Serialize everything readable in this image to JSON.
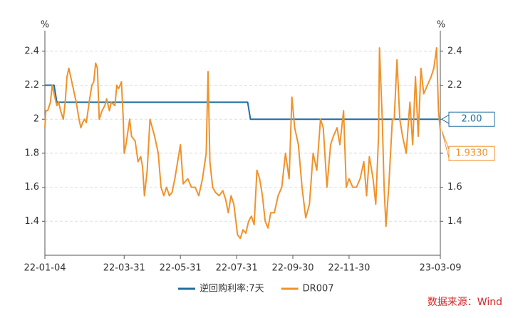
{
  "chart_data": {
    "type": "line",
    "y_unit": "%",
    "y2_unit": "%",
    "xlim": [
      "22-01-04",
      "23-03-09"
    ],
    "xticks": [
      "22-01-04",
      "22-03-31",
      "22-05-31",
      "22-07-31",
      "22-09-30",
      "22-11-30",
      "23-03-09"
    ],
    "ylim": [
      1.2,
      2.5
    ],
    "yticks": [
      1.4,
      1.6,
      1.8,
      2,
      2.2,
      2.4
    ],
    "y2lim": [
      1.2,
      2.5
    ],
    "y2ticks": [
      1.4,
      1.6,
      1.8,
      2,
      2.2,
      2.4
    ],
    "grid": true,
    "legend": "bottom",
    "source": "数据来源：Wind",
    "series": [
      {
        "name": "逆回购利率:7天",
        "color": "#1f6fa0",
        "last_label": "2.00",
        "x": [
          "22-01-04",
          "22-01-14",
          "22-01-17",
          "22-08-12",
          "22-08-15",
          "23-03-09"
        ],
        "values": [
          2.2,
          2.2,
          2.1,
          2.1,
          2.0,
          2.0
        ]
      },
      {
        "name": "DR007",
        "color": "#f0922b",
        "last_label": "1.9330",
        "x": [
          "22-01-04",
          "22-01-05",
          "22-01-07",
          "22-01-10",
          "22-01-12",
          "22-01-14",
          "22-01-17",
          "22-01-19",
          "22-01-21",
          "22-01-24",
          "22-01-26",
          "22-01-28",
          "22-01-30",
          "22-02-07",
          "22-02-10",
          "22-02-12",
          "22-02-14",
          "22-02-16",
          "22-02-18",
          "22-02-21",
          "22-02-24",
          "22-02-26",
          "22-02-28",
          "22-03-02",
          "22-03-04",
          "22-03-07",
          "22-03-10",
          "22-03-12",
          "22-03-15",
          "22-03-17",
          "22-03-21",
          "22-03-23",
          "22-03-25",
          "22-03-28",
          "22-03-30",
          "22-03-31",
          "22-04-02",
          "22-04-06",
          "22-04-08",
          "22-04-12",
          "22-04-15",
          "22-04-18",
          "22-04-20",
          "22-04-22",
          "22-04-25",
          "22-04-28",
          "22-05-03",
          "22-05-07",
          "22-05-10",
          "22-05-13",
          "22-05-16",
          "22-05-19",
          "22-05-22",
          "22-05-25",
          "22-05-28",
          "22-05-31",
          "22-06-03",
          "22-06-08",
          "22-06-12",
          "22-06-16",
          "22-06-20",
          "22-06-24",
          "22-06-28",
          "22-06-30",
          "22-07-02",
          "22-07-05",
          "22-07-08",
          "22-07-12",
          "22-07-16",
          "22-07-19",
          "22-07-22",
          "22-07-25",
          "22-07-28",
          "22-08-01",
          "22-08-04",
          "22-08-07",
          "22-08-10",
          "22-08-13",
          "22-08-16",
          "22-08-19",
          "22-08-22",
          "22-08-25",
          "22-08-28",
          "22-08-31",
          "22-09-03",
          "22-09-06",
          "22-09-10",
          "22-09-14",
          "22-09-18",
          "22-09-22",
          "22-09-26",
          "22-09-29",
          "22-10-02",
          "22-10-06",
          "22-10-10",
          "22-10-14",
          "22-10-18",
          "22-10-22",
          "22-10-26",
          "22-10-30",
          "22-11-02",
          "22-11-06",
          "22-11-10",
          "22-11-13",
          "22-11-17",
          "22-11-20",
          "22-11-24",
          "22-11-27",
          "22-11-30",
          "22-12-04",
          "22-12-08",
          "22-12-12",
          "22-12-16",
          "22-12-19",
          "22-12-22",
          "22-12-26",
          "22-12-29",
          "23-01-01",
          "23-01-02",
          "23-01-05",
          "23-01-07",
          "23-01-09",
          "23-01-12",
          "23-01-16",
          "23-01-18",
          "23-01-21",
          "23-01-24",
          "23-01-27",
          "23-01-31",
          "23-02-04",
          "23-02-07",
          "23-02-10",
          "23-02-13",
          "23-02-16",
          "23-02-19",
          "23-02-23",
          "23-02-27",
          "23-03-02",
          "23-03-05",
          "23-03-07",
          "23-03-09"
        ],
        "values": [
          1.95,
          2.05,
          2.05,
          2.1,
          2.2,
          2.15,
          2.08,
          2.1,
          2.05,
          2.0,
          2.1,
          2.25,
          2.3,
          2.1,
          2.0,
          1.95,
          1.98,
          2.0,
          1.98,
          2.1,
          2.2,
          2.22,
          2.33,
          2.3,
          2.0,
          2.05,
          2.08,
          2.12,
          2.05,
          2.1,
          2.08,
          2.2,
          2.18,
          2.22,
          2.0,
          1.8,
          1.85,
          2.0,
          1.9,
          1.87,
          1.75,
          1.78,
          1.72,
          1.55,
          1.7,
          2.0,
          1.9,
          1.8,
          1.6,
          1.55,
          1.6,
          1.55,
          1.57,
          1.65,
          1.75,
          1.85,
          1.62,
          1.65,
          1.6,
          1.6,
          1.55,
          1.65,
          1.8,
          2.28,
          1.75,
          1.6,
          1.57,
          1.55,
          1.58,
          1.53,
          1.45,
          1.55,
          1.5,
          1.32,
          1.3,
          1.35,
          1.33,
          1.4,
          1.43,
          1.38,
          1.7,
          1.65,
          1.55,
          1.4,
          1.36,
          1.45,
          1.45,
          1.55,
          1.6,
          1.8,
          1.65,
          2.13,
          1.95,
          1.85,
          1.6,
          1.42,
          1.5,
          1.8,
          1.7,
          2.0,
          1.95,
          1.6,
          1.85,
          1.9,
          1.95,
          1.85,
          2.05,
          1.6,
          1.65,
          1.6,
          1.6,
          1.65,
          1.75,
          1.55,
          1.78,
          1.65,
          1.5,
          1.9,
          2.42,
          2.0,
          1.6,
          1.37,
          1.6,
          2.0,
          2.0,
          2.35,
          2.0,
          1.9,
          1.8,
          2.1,
          1.85,
          2.25,
          1.9,
          2.3,
          2.15,
          2.2,
          2.25,
          2.3,
          2.42,
          2.05,
          1.933
        ]
      }
    ]
  }
}
